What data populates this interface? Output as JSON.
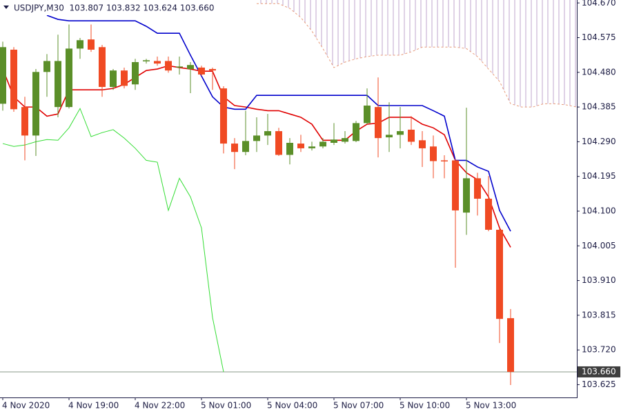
{
  "chart_data": {
    "type": "candlestick",
    "title": "USDJPY,M30  103.807 103.832 103.624 103.660",
    "categories": [
      "4 Nov 2020",
      null,
      null,
      null,
      null,
      null,
      "4 Nov 19:00",
      null,
      null,
      null,
      null,
      null,
      "4 Nov 22:00",
      null,
      null,
      null,
      null,
      null,
      "5 Nov 01:00",
      null,
      null,
      null,
      null,
      null,
      "5 Nov 04:00",
      null,
      null,
      null,
      null,
      null,
      "5 Nov 07:00",
      null,
      null,
      null,
      null,
      null,
      "5 Nov 10:00",
      null,
      null,
      null,
      null,
      null,
      "5 Nov 13:00",
      null,
      null,
      null,
      null,
      null,
      null,
      null,
      null,
      null,
      null
    ],
    "ohlc": {
      "up_color": "#5b8f29",
      "down_color": "#f04a23",
      "open": [
        104.394,
        104.542,
        104.385,
        104.307,
        104.481,
        104.385,
        104.385,
        104.545,
        104.57,
        104.549,
        104.44,
        104.485,
        104.447,
        104.51,
        104.511,
        104.511,
        104.494,
        104.489,
        104.493,
        104.489,
        104.436,
        104.285,
        104.262,
        104.292,
        104.307,
        104.319,
        104.254,
        104.285,
        104.272,
        104.277,
        104.287,
        104.29,
        104.292,
        104.341,
        104.385,
        104.302,
        104.309,
        104.323,
        104.294,
        104.277,
        104.239,
        104.239,
        104.096,
        104.19,
        104.134,
        104.049,
        103.807,
        null,
        null,
        null,
        null,
        null,
        null
      ],
      "high": [
        104.564,
        104.549,
        104.413,
        104.489,
        104.53,
        104.583,
        104.611,
        104.574,
        104.611,
        104.555,
        104.489,
        104.493,
        104.517,
        104.517,
        104.523,
        104.523,
        104.523,
        104.508,
        104.498,
        104.493,
        104.442,
        104.3,
        104.375,
        104.357,
        104.366,
        104.328,
        104.3,
        104.309,
        104.29,
        104.3,
        104.341,
        104.319,
        104.347,
        104.436,
        104.466,
        104.398,
        104.385,
        104.36,
        104.319,
        104.307,
        104.253,
        104.243,
        104.383,
        104.205,
        104.196,
        104.054,
        103.832,
        null,
        null,
        null,
        null,
        null,
        null
      ],
      "low": [
        104.375,
        104.372,
        104.239,
        104.251,
        104.413,
        104.357,
        104.381,
        104.517,
        104.536,
        104.413,
        104.432,
        104.436,
        104.432,
        104.504,
        104.498,
        104.479,
        104.474,
        104.423,
        104.47,
        104.432,
        104.258,
        104.215,
        104.253,
        104.262,
        104.281,
        104.251,
        104.228,
        104.262,
        104.266,
        104.272,
        104.281,
        104.285,
        104.289,
        104.338,
        104.247,
        104.262,
        104.272,
        104.281,
        104.221,
        104.19,
        104.19,
        103.945,
        104.035,
        104.088,
        104.045,
        103.739,
        103.624,
        null,
        null,
        null,
        null,
        null,
        null
      ],
      "close": [
        104.549,
        104.379,
        104.307,
        104.481,
        104.511,
        104.511,
        104.545,
        104.568,
        104.542,
        104.44,
        104.485,
        104.443,
        104.508,
        104.513,
        104.504,
        104.485,
        104.496,
        104.5,
        104.474,
        104.485,
        104.285,
        104.262,
        104.292,
        104.307,
        104.319,
        104.254,
        104.287,
        104.272,
        104.277,
        104.29,
        104.296,
        104.3,
        104.341,
        104.389,
        104.3,
        104.309,
        104.319,
        104.29,
        104.272,
        104.237,
        104.237,
        104.102,
        104.19,
        104.134,
        104.049,
        103.805,
        103.66,
        null,
        null,
        null,
        null,
        null,
        null
      ]
    },
    "lines": [
      {
        "color": "#e00000",
        "values": [
          104.489,
          104.413,
          104.385,
          104.385,
          104.36,
          104.366,
          104.432,
          104.432,
          104.432,
          104.432,
          104.436,
          104.447,
          104.466,
          104.485,
          104.489,
          104.498,
          104.493,
          104.489,
          104.483,
          104.483,
          104.413,
          104.389,
          104.385,
          104.379,
          104.375,
          104.375,
          104.366,
          104.357,
          104.338,
          104.294,
          104.294,
          104.294,
          104.319,
          104.338,
          104.341,
          104.357,
          104.357,
          104.357,
          104.338,
          104.328,
          104.309,
          104.239,
          104.205,
          104.186,
          104.139,
          104.054,
          104.001,
          null,
          null,
          null,
          null,
          null,
          null
        ]
      },
      {
        "color": "#0000cc",
        "values": [
          null,
          null,
          null,
          null,
          104.636,
          104.625,
          104.621,
          104.621,
          104.621,
          104.621,
          104.621,
          104.621,
          104.621,
          104.606,
          104.587,
          104.587,
          104.587,
          104.527,
          104.47,
          104.413,
          104.385,
          104.379,
          104.379,
          104.417,
          104.417,
          104.417,
          104.417,
          104.417,
          104.417,
          104.417,
          104.417,
          104.417,
          104.417,
          104.417,
          104.389,
          104.389,
          104.389,
          104.389,
          104.389,
          104.375,
          104.36,
          104.239,
          104.239,
          104.221,
          104.209,
          104.102,
          104.045,
          null,
          null,
          null,
          null,
          null,
          null
        ]
      },
      {
        "color": "#33dd33",
        "values": [
          104.285,
          104.277,
          104.281,
          104.29,
          104.296,
          104.294,
          104.328,
          104.381,
          104.304,
          104.315,
          104.323,
          104.3,
          104.272,
          104.239,
          104.234,
          104.102,
          104.19,
          104.139,
          104.054,
          103.809,
          103.66,
          null,
          null,
          null,
          null,
          null,
          null,
          null,
          null,
          null,
          null,
          null,
          null,
          null,
          null,
          null,
          null,
          null,
          null,
          null,
          null,
          null,
          null,
          null,
          null,
          null,
          null,
          null,
          null,
          null,
          null,
          null,
          null
        ]
      }
    ],
    "cloud": {
      "color": "#e89a78",
      "hatch_color": "#c9b4d6",
      "values": [
        null,
        null,
        null,
        null,
        null,
        null,
        null,
        null,
        null,
        null,
        null,
        null,
        null,
        null,
        null,
        null,
        null,
        null,
        null,
        null,
        null,
        null,
        null,
        104.668,
        104.668,
        104.668,
        104.655,
        104.63,
        104.593,
        104.545,
        104.493,
        104.508,
        104.517,
        104.523,
        104.527,
        104.527,
        104.527,
        104.536,
        104.549,
        104.549,
        104.549,
        104.549,
        104.545,
        104.523,
        104.489,
        104.455,
        104.394,
        104.385,
        104.385,
        104.394,
        104.394,
        104.391,
        104.385
      ]
    },
    "last_price": {
      "value": 103.66,
      "label": "103.660"
    },
    "ylim": [
      103.59,
      104.678
    ],
    "yticks": [
      {
        "value": 104.67,
        "label": "104.670"
      },
      104.575,
      {
        "value": 104.48,
        "label": "104.480"
      },
      104.385,
      {
        "value": 104.29,
        "label": "104.290"
      },
      104.195,
      {
        "value": 104.1,
        "label": "104.100"
      },
      104.005,
      {
        "value": 103.91,
        "label": "103.910"
      },
      103.815,
      {
        "value": 103.72,
        "label": "103.720"
      },
      103.625
    ]
  }
}
